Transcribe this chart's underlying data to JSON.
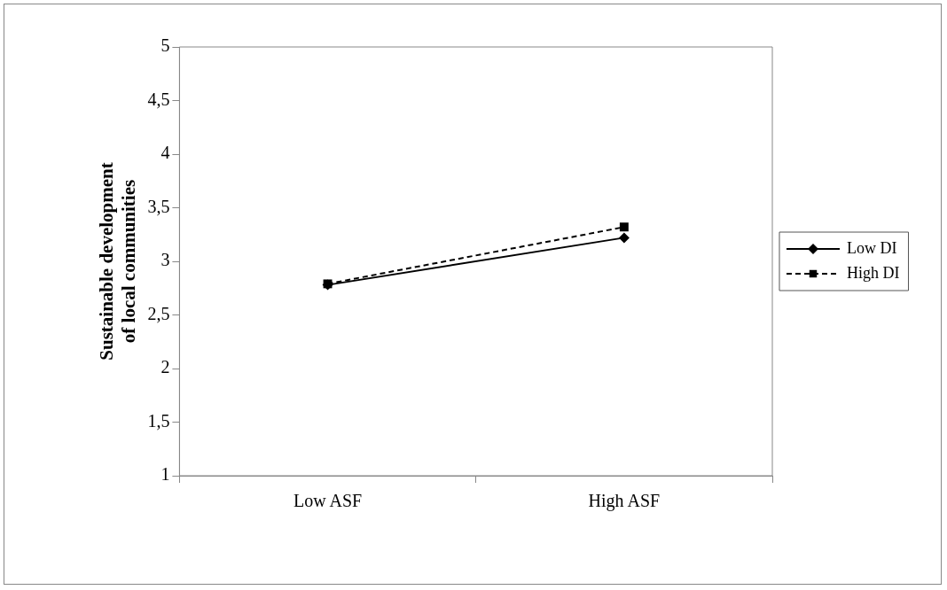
{
  "chart_data": {
    "type": "line",
    "ylabel": "Sustainable development of local communities",
    "categories": [
      "Low ASF",
      "High ASF"
    ],
    "series": [
      {
        "name": "Low DI",
        "color": "#000000",
        "values": [
          2.78,
          3.22
        ],
        "marker": "diamond",
        "line_style": "solid"
      },
      {
        "name": "High DI",
        "color": "#000000",
        "values": [
          2.79,
          3.32
        ],
        "marker": "square",
        "line_style": "dashed"
      }
    ],
    "ylim": [
      1,
      5
    ],
    "yticks": [
      1,
      {
        "value": 1.5,
        "label": "1,5"
      },
      2,
      {
        "value": 2.5,
        "label": "2,5"
      },
      3,
      {
        "value": 3.5,
        "label": "3,5"
      },
      4,
      {
        "value": 4.5,
        "label": "4,5"
      },
      5
    ],
    "grid": false,
    "legend": "right"
  }
}
